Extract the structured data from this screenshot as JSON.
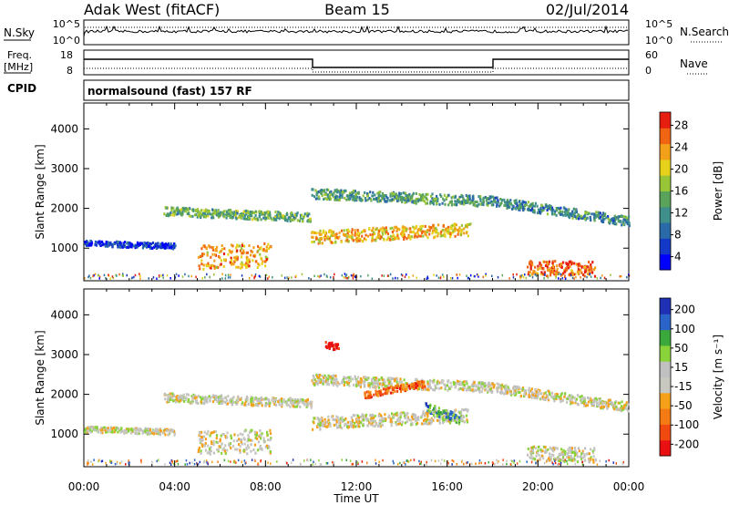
{
  "header": {
    "station": "Adak West (fitACF)",
    "beam": "Beam 15",
    "date": "02/Jul/2014"
  },
  "top_panels": {
    "nsky_label": "N.Sky",
    "nsky_ticks": [
      "10^5",
      "10^0"
    ],
    "nsearch_label": "N.Search",
    "nsearch_ticks": [
      "10^5",
      "10^0"
    ],
    "freq_label_1": "Freq.",
    "freq_label_2": "[MHz]",
    "freq_ticks": [
      "18",
      "8"
    ],
    "nave_label": "Nave",
    "nave_ticks": [
      "60",
      "0"
    ],
    "cpid_label": "CPID",
    "cpid_text": "normalsound (fast) 157 RF"
  },
  "chart_data": [
    {
      "type": "heatmap",
      "title": "",
      "xlabel": "Time UT",
      "ylabel": "Slant Range [km]",
      "xlim_hours": [
        0,
        24
      ],
      "ylim": [
        180,
        4650
      ],
      "x_ticks": [
        "00:00",
        "04:00",
        "08:00",
        "12:00",
        "16:00",
        "20:00",
        "00:00"
      ],
      "y_ticks": [
        1000,
        2000,
        3000,
        4000
      ],
      "colorbar": {
        "label": "Power [dB]",
        "ticks": [
          "28",
          "24",
          "20",
          "16",
          "12",
          "8",
          "4"
        ],
        "colors": [
          "#0000ff",
          "#1438c8",
          "#2a6aa8",
          "#3f8f8a",
          "#5aa35a",
          "#98c438",
          "#e6d21a",
          "#f2a01a",
          "#f06414",
          "#e61e10"
        ]
      },
      "features": [
        {
          "name": "band-a",
          "t0": 0.0,
          "t1": 4.0,
          "r0": 1150,
          "r1": 1080,
          "w": 70,
          "v": 0.15
        },
        {
          "name": "patch-b",
          "t0": 5.0,
          "t1": 8.2,
          "r0": 800,
          "r1": 850,
          "w": 300,
          "v": 0.75
        },
        {
          "name": "band-c",
          "t0": 3.5,
          "t1": 10.0,
          "r0": 1950,
          "r1": 1800,
          "w": 110,
          "v": 0.45
        },
        {
          "name": "band-d",
          "t0": 10.0,
          "t1": 17.0,
          "r0": 1300,
          "r1": 1500,
          "w": 160,
          "v": 0.7
        },
        {
          "name": "band-e",
          "t0": 10.0,
          "t1": 18.0,
          "r0": 2400,
          "r1": 2200,
          "w": 130,
          "v": 0.4
        },
        {
          "name": "band-f",
          "t0": 18.0,
          "t1": 24.0,
          "r0": 2200,
          "r1": 1700,
          "w": 120,
          "v": 0.35
        },
        {
          "name": "patch-g",
          "t0": 19.5,
          "t1": 22.5,
          "r0": 550,
          "r1": 500,
          "w": 180,
          "v": 0.85
        }
      ]
    },
    {
      "type": "heatmap",
      "title": "",
      "xlabel": "Time UT",
      "ylabel": "Slant Range [km]",
      "xlim_hours": [
        0,
        24
      ],
      "ylim": [
        180,
        4650
      ],
      "x_ticks": [
        "00:00",
        "04:00",
        "08:00",
        "12:00",
        "16:00",
        "20:00",
        "00:00"
      ],
      "y_ticks": [
        1000,
        2000,
        3000,
        4000
      ],
      "colorbar": {
        "label": "Velocity [m s⁻¹]",
        "ticks": [
          "200",
          "100",
          "50",
          "15",
          "-15",
          "-50",
          "-100",
          "-200"
        ],
        "colors": [
          "#e81010",
          "#f04a10",
          "#f47a14",
          "#f6a01a",
          "#c8c8c0",
          "#c0c0c0",
          "#8ad23a",
          "#3aa83a",
          "#2a64c8",
          "#2030b4"
        ]
      },
      "features": [
        {
          "name": "band-a",
          "t0": 0.0,
          "t1": 4.0,
          "r0": 1150,
          "r1": 1080,
          "w": 70,
          "v": 0.5
        },
        {
          "name": "patch-b",
          "t0": 5.0,
          "t1": 8.2,
          "r0": 800,
          "r1": 850,
          "w": 300,
          "v": 0.5
        },
        {
          "name": "band-c",
          "t0": 3.5,
          "t1": 10.0,
          "r0": 1950,
          "r1": 1800,
          "w": 110,
          "v": 0.5
        },
        {
          "name": "band-d",
          "t0": 10.0,
          "t1": 17.0,
          "r0": 1300,
          "r1": 1500,
          "w": 160,
          "v": 0.5
        },
        {
          "name": "band-e",
          "t0": 10.0,
          "t1": 18.0,
          "r0": 2400,
          "r1": 2200,
          "w": 130,
          "v": 0.5
        },
        {
          "name": "band-f",
          "t0": 18.0,
          "t1": 24.0,
          "r0": 2200,
          "r1": 1700,
          "w": 120,
          "v": 0.5
        },
        {
          "name": "patch-g",
          "t0": 19.5,
          "t1": 22.5,
          "r0": 550,
          "r1": 500,
          "w": 180,
          "v": 0.5
        },
        {
          "name": "orange-streak",
          "t0": 12.3,
          "t1": 15.0,
          "r0": 2000,
          "r1": 2300,
          "w": 80,
          "v": 0.2
        },
        {
          "name": "green-patch",
          "t0": 15.0,
          "t1": 16.5,
          "r0": 1700,
          "r1": 1400,
          "w": 120,
          "v": 0.75
        },
        {
          "name": "red-spot",
          "t0": 10.6,
          "t1": 11.2,
          "r0": 3300,
          "r1": 3200,
          "w": 90,
          "v": 0.0
        }
      ]
    }
  ]
}
